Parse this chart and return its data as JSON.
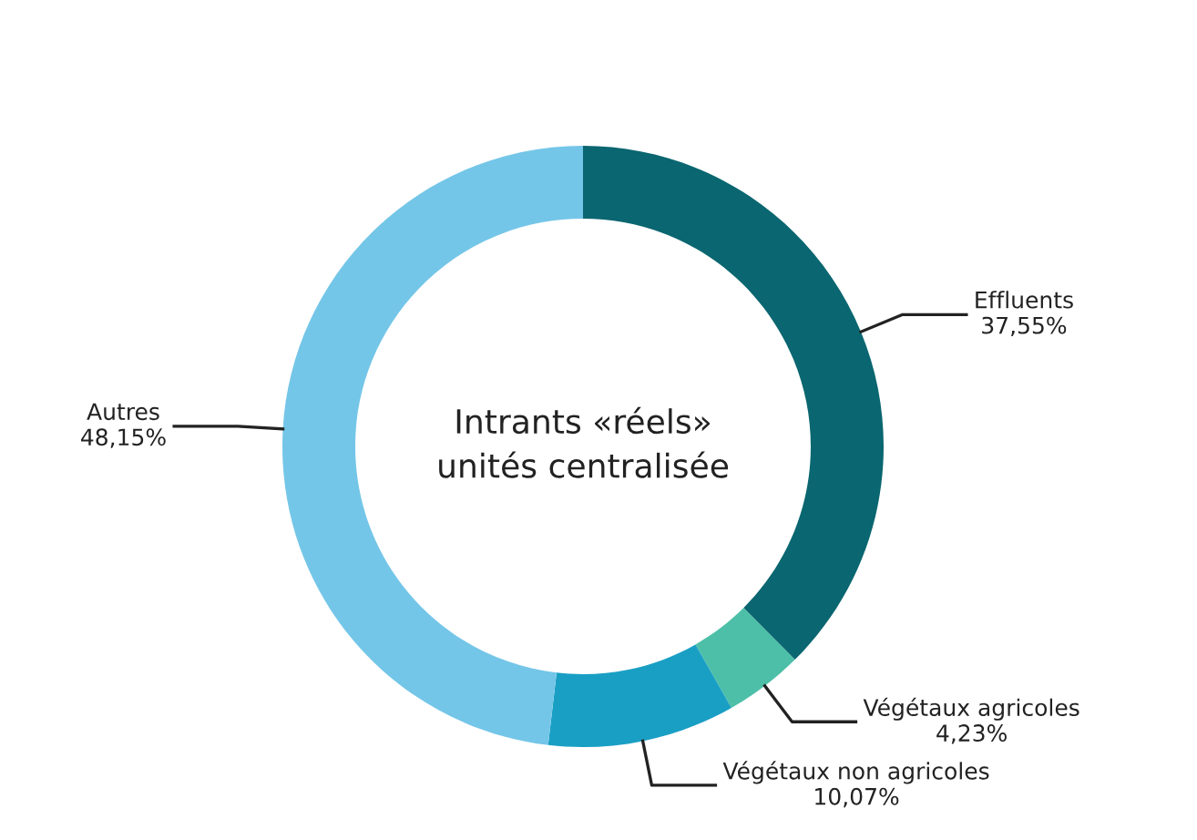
{
  "chart_data": {
    "type": "donut",
    "title": "Intrants «réels»\nunités centralisée",
    "categories": [
      "Effluents",
      "Végétaux agricoles",
      "Végétaux non agricoles",
      "Autres"
    ],
    "values": [
      37.55,
      4.23,
      10.07,
      48.15
    ],
    "value_labels": [
      "37,55%",
      "4,23%",
      "10,07%",
      "48,15%"
    ],
    "colors": [
      "#0a6670",
      "#4dbfa8",
      "#1a9fc4",
      "#74c6e8"
    ],
    "legend": false
  }
}
